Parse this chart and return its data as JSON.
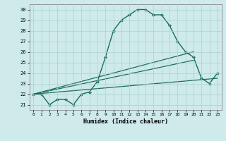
{
  "xlabel": "Humidex (Indice chaleur)",
  "ylabel": "",
  "xlim": [
    -0.5,
    23.5
  ],
  "ylim": [
    20.5,
    30.5
  ],
  "xticks": [
    0,
    1,
    2,
    3,
    4,
    5,
    6,
    7,
    8,
    9,
    10,
    11,
    12,
    13,
    14,
    15,
    16,
    17,
    18,
    19,
    20,
    21,
    22,
    23
  ],
  "yticks": [
    21,
    22,
    23,
    24,
    25,
    26,
    27,
    28,
    29,
    30
  ],
  "background_color": "#ceeaea",
  "grid_color": "#aecfcf",
  "line_color": "#1a6b5a",
  "lines": [
    {
      "x": [
        0,
        1,
        2,
        3,
        4,
        5,
        6,
        7,
        8,
        9,
        10,
        11,
        12,
        13,
        14,
        15,
        16,
        17,
        18,
        19,
        20,
        21,
        22,
        23
      ],
      "y": [
        22,
        22,
        21,
        21.5,
        21.5,
        21,
        22,
        22.2,
        23.2,
        25.5,
        28,
        29,
        29.5,
        30,
        30,
        29.5,
        29.5,
        28.5,
        27,
        26,
        25.5,
        23.5,
        23,
        24
      ],
      "marker": "D",
      "markersize": 2.0,
      "linewidth": 1.0
    },
    {
      "x": [
        0,
        20
      ],
      "y": [
        22,
        26
      ],
      "marker": null,
      "linewidth": 0.9
    },
    {
      "x": [
        0,
        20
      ],
      "y": [
        22,
        25.2
      ],
      "marker": null,
      "linewidth": 0.9
    },
    {
      "x": [
        0,
        23
      ],
      "y": [
        22,
        23.5
      ],
      "marker": null,
      "linewidth": 0.9
    }
  ]
}
